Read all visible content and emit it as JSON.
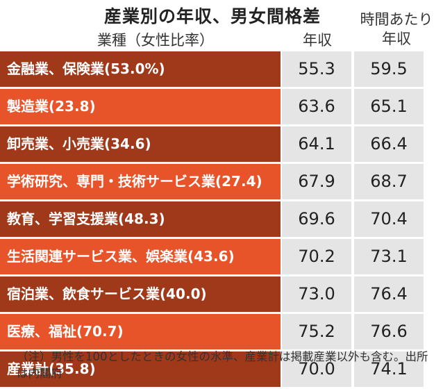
{
  "title": "産業別の年収、男女間格差",
  "columns": {
    "industry": "業種（女性比率）",
    "annual": "年収",
    "hourly": "時間あたり\n年収"
  },
  "chart_data": {
    "type": "table",
    "columns": [
      "業種（女性比率）",
      "年収",
      "時間あたり年収"
    ],
    "rows": [
      {
        "label": "金融業、保険業(53.0%)",
        "annual": "55.3",
        "hourly": "59.5"
      },
      {
        "label": "製造業(23.8)",
        "annual": "63.6",
        "hourly": "65.1"
      },
      {
        "label": "卸売業、小売業(34.6)",
        "annual": "64.1",
        "hourly": "66.4"
      },
      {
        "label": "学術研究、専門・技術サービス業(27.4)",
        "annual": "67.9",
        "hourly": "68.7"
      },
      {
        "label": "教育、学習支援業(48.3)",
        "annual": "69.6",
        "hourly": "70.4"
      },
      {
        "label": "生活関連サービス業、娯楽業(43.6)",
        "annual": "70.2",
        "hourly": "73.1"
      },
      {
        "label": "宿泊業、飲食サービス業(40.0)",
        "annual": "73.0",
        "hourly": "76.4"
      },
      {
        "label": "医療、福祉(70.7)",
        "annual": "75.2",
        "hourly": "76.6"
      },
      {
        "label": "産業計(35.8)",
        "annual": "70.0",
        "hourly": "74.1"
      }
    ],
    "colors": {
      "label_dark": "#a0391a",
      "label_light": "#e8542a",
      "value_bg": "#e5e5e5"
    }
  },
  "note": "（注）男性を100としたときの女性の水準、産業計は掲載産業以外も含む。出所は内閣府"
}
